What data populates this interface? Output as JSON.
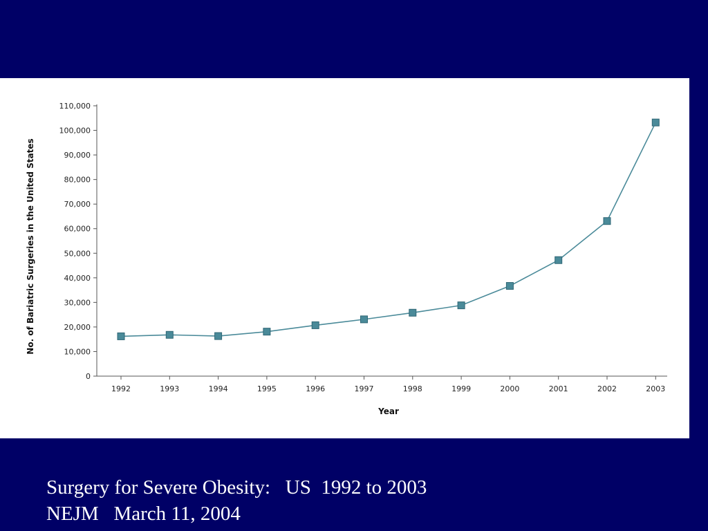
{
  "slide": {
    "background": "#000066",
    "caption_line1": "Surgery for Severe Obesity:   US  1992 to 2003",
    "caption_line2": "NEJM   March 11, 2004"
  },
  "chart_data": {
    "type": "line",
    "title": "",
    "xlabel": "Year",
    "ylabel": "No. of  Bariatric Surgeries in the United States",
    "x": [
      "1992",
      "1993",
      "1994",
      "1995",
      "1996",
      "1997",
      "1998",
      "1999",
      "2000",
      "2001",
      "2002",
      "2003"
    ],
    "series": [
      {
        "values": [
          16200,
          16800,
          16300,
          18100,
          20700,
          23100,
          25800,
          28800,
          36700,
          47200,
          63100,
          103200
        ],
        "color": "#4a8a99"
      }
    ],
    "ylim": [
      0,
      110000
    ],
    "yticks": [
      0,
      10000,
      20000,
      30000,
      40000,
      50000,
      60000,
      70000,
      80000,
      90000,
      100000,
      110000
    ],
    "ytick_labels": [
      "0",
      "10,000",
      "20,000",
      "30,000",
      "40,000",
      "50,000",
      "60,000",
      "70,000",
      "80,000",
      "90,000",
      "100,000",
      "110,000"
    ],
    "grid": false,
    "legend": "none"
  }
}
